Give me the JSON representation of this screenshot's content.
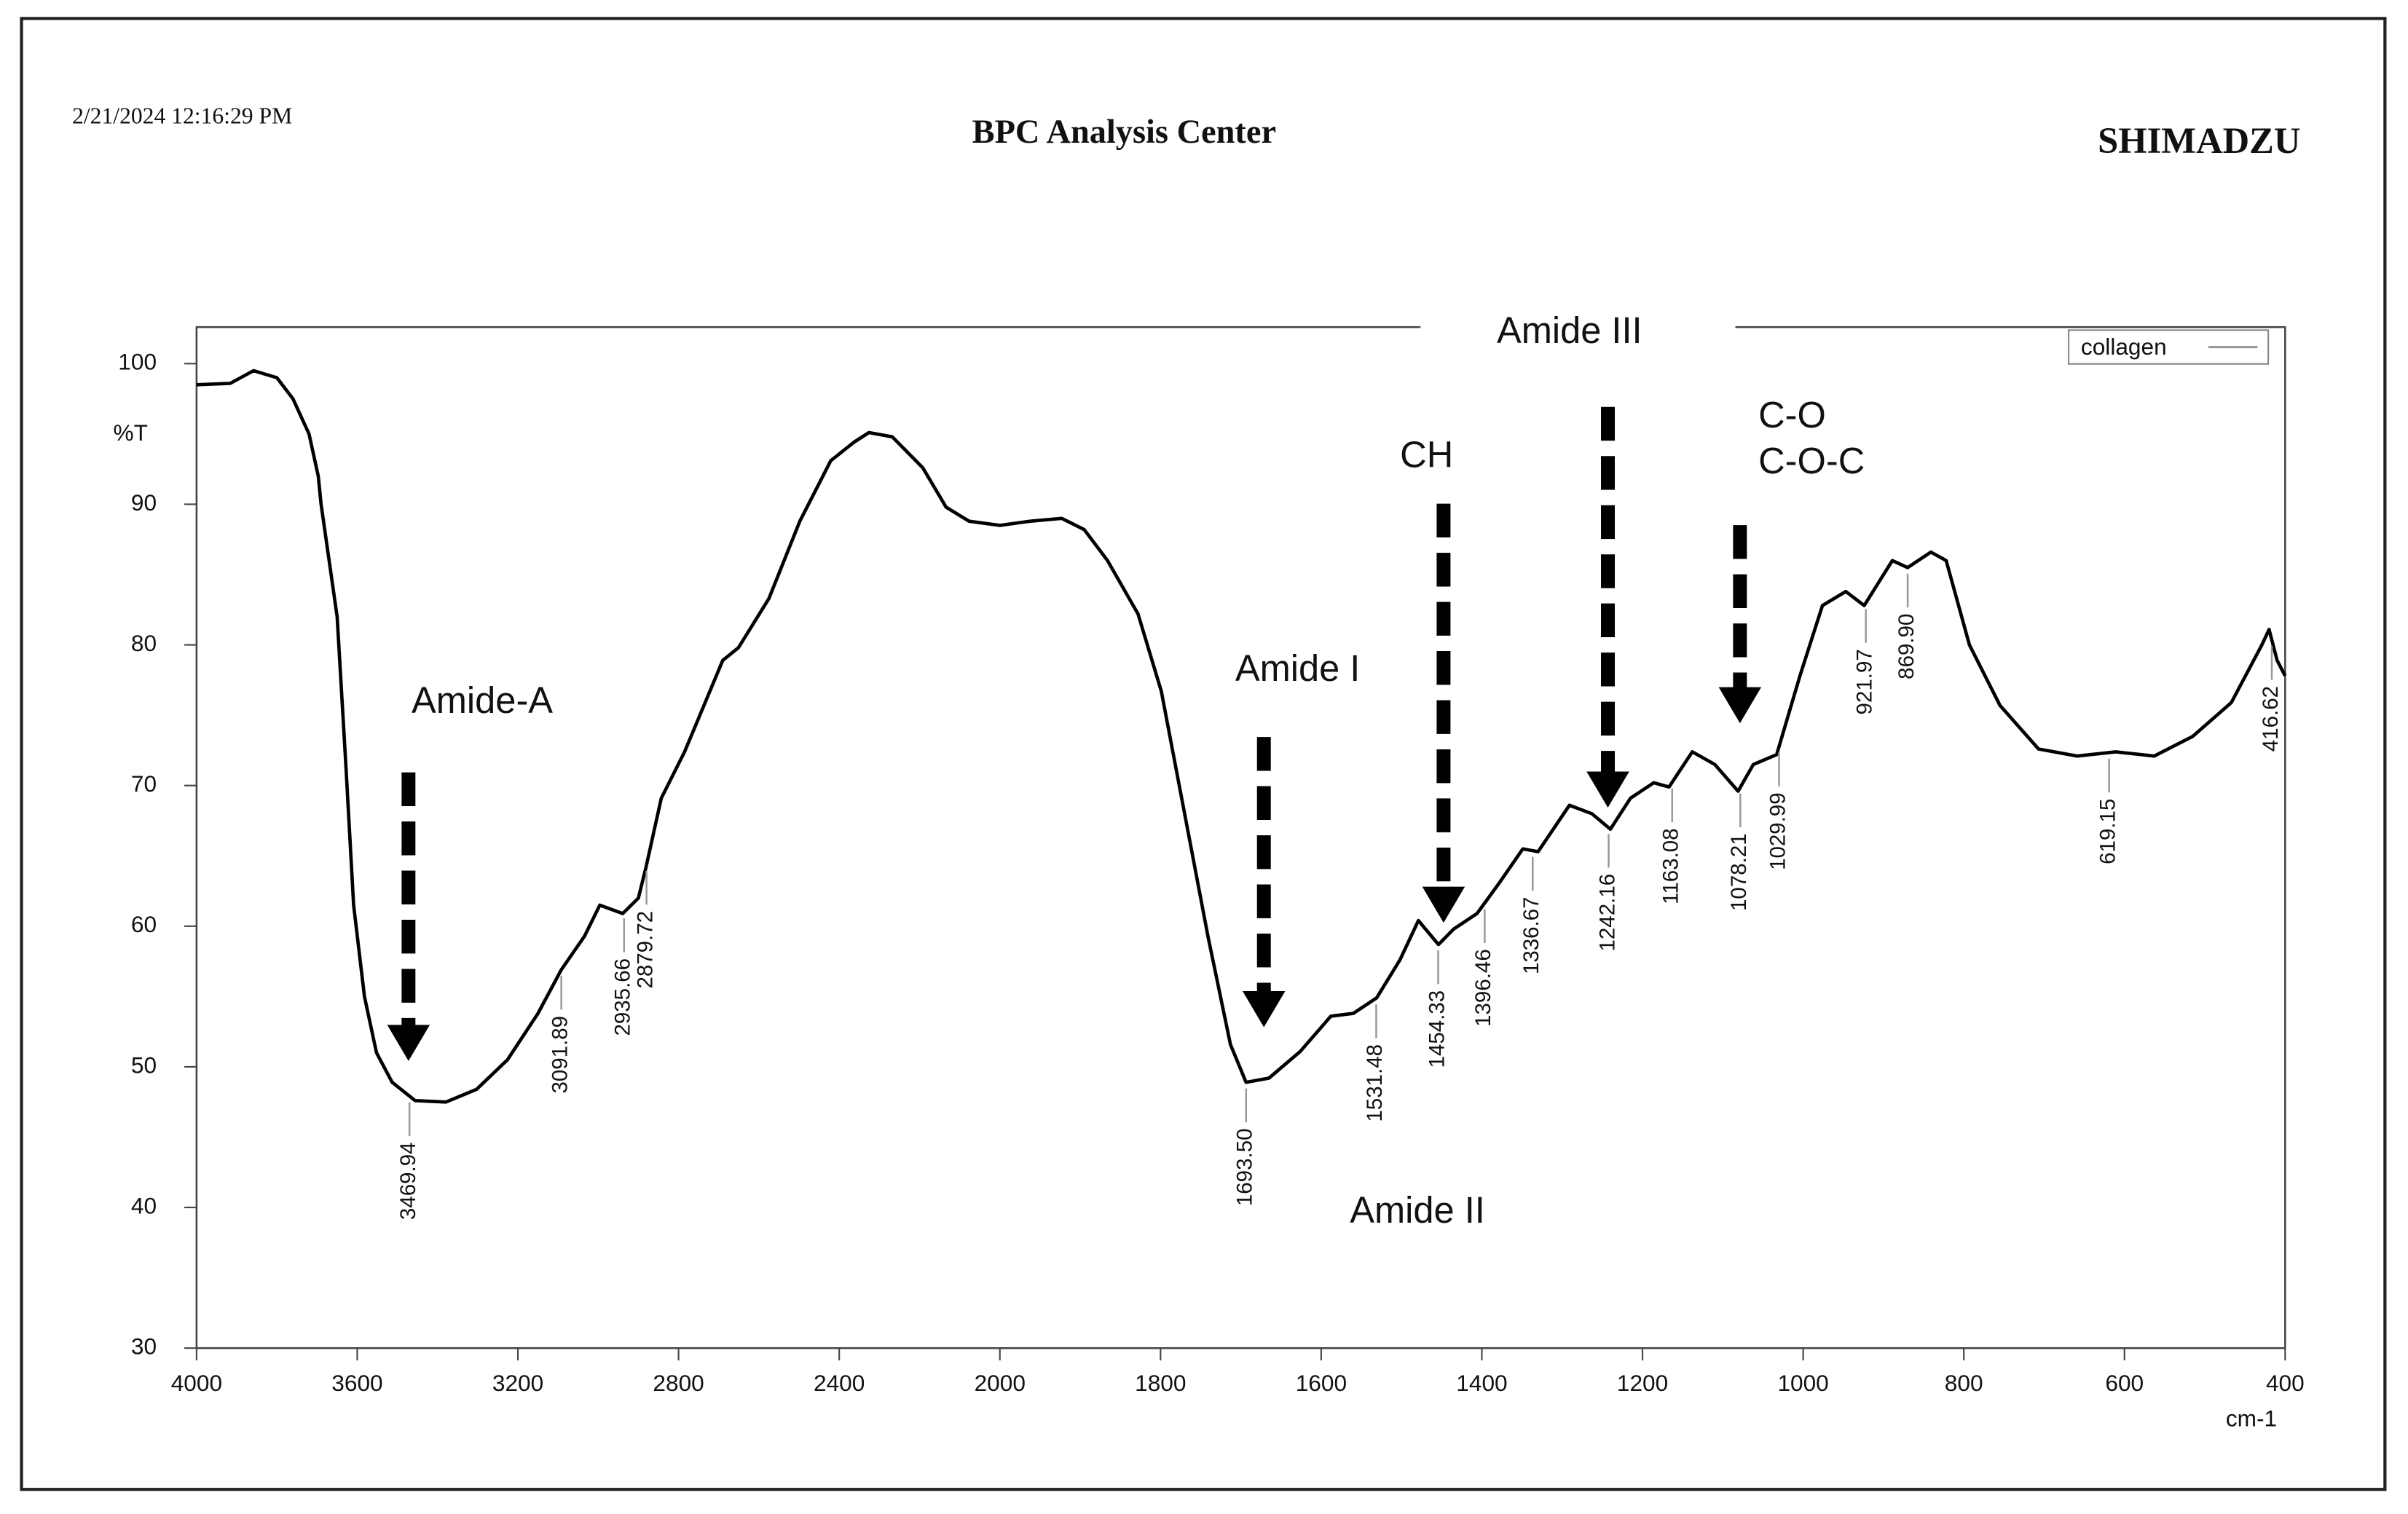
{
  "chart_data": {
    "type": "line",
    "date": "2/21/2024 12:16:29 PM",
    "title": "BPC Analysis Center",
    "brand": "SHIMADZU",
    "ylabel": "%T",
    "xlabel": "cm-1",
    "xlim": [
      4000,
      400
    ],
    "xticks": [
      4000,
      3600,
      3200,
      2800,
      2400,
      2000,
      1800,
      1600,
      1400,
      1200,
      1000,
      800,
      600,
      400
    ],
    "ylim": [
      30,
      102.6
    ],
    "yticks": [
      30,
      40,
      50,
      60,
      70,
      80,
      90,
      100
    ],
    "legend": "upper right",
    "x": [
      4000,
      3916,
      3858,
      3800,
      3760,
      3720,
      3697,
      3690,
      3650,
      3628,
      3609,
      3582,
      3552,
      3513,
      3456,
      3379,
      3303,
      3226,
      3150,
      3092,
      3034,
      2996,
      2939,
      2900,
      2881,
      2843,
      2785,
      2690,
      2651,
      2575,
      2498,
      2421,
      2364,
      2326,
      2268,
      2192,
      2134,
      2077,
      2000,
      1962,
      1923,
      1895,
      1866,
      1828,
      1799,
      1770,
      1741,
      1713,
      1693.5,
      1665,
      1626,
      1588,
      1560,
      1531,
      1502,
      1479,
      1454,
      1435,
      1406,
      1378,
      1349,
      1330,
      1291,
      1263,
      1240,
      1215,
      1186,
      1167,
      1138,
      1110,
      1081,
      1062,
      1033,
      1004,
      976,
      947,
      924,
      889,
      870,
      841,
      822,
      793,
      755,
      707,
      659,
      611,
      563,
      515,
      467,
      429,
      420,
      410,
      400
    ],
    "series": [
      {
        "name": "collagen",
        "color": "#000000",
        "values": [
          98.5,
          98.6,
          99.5,
          99,
          97.5,
          95,
          92,
          90,
          82,
          71.3,
          61.5,
          55,
          51,
          48.9,
          47.6,
          47.5,
          48.4,
          50.5,
          53.8,
          56.9,
          59.3,
          61.5,
          60.9,
          62,
          64.2,
          69.1,
          72.4,
          78.9,
          79.8,
          83.3,
          88.8,
          93.1,
          94.4,
          95.1,
          94.8,
          92.6,
          89.8,
          88.8,
          88.5,
          88.8,
          89,
          88.2,
          86,
          82.2,
          76.7,
          68,
          59.3,
          51.6,
          48.9,
          49.2,
          51.1,
          53.6,
          53.8,
          54.9,
          57.6,
          60.4,
          58.7,
          59.8,
          60.9,
          63.1,
          65.5,
          65.3,
          68.6,
          68,
          66.9,
          69.1,
          70.2,
          69.9,
          72.4,
          71.5,
          69.6,
          71.5,
          72.2,
          77.8,
          82.8,
          83.8,
          82.8,
          86,
          85.5,
          86.6,
          86,
          80,
          75.7,
          72.6,
          72.1,
          72.4,
          72.1,
          73.5,
          75.9,
          80,
          81.1,
          78.9,
          77.8
        ]
      }
    ],
    "peaks": [
      3469.94,
      3091.89,
      2935.66,
      2879.72,
      {
        "value": 1693.5,
        "label": "1693.50"
      },
      1531.48,
      1454.33,
      1396.46,
      1336.67,
      1242.16,
      1163.08,
      1078.21,
      1029.99,
      921.97,
      {
        "value": 869.9,
        "label": "869.90"
      },
      619.15,
      416.62
    ],
    "annotations": [
      "Amide-A",
      "Amide I",
      "Amide II",
      "Amide III",
      "CH",
      "C-O",
      "C-O-C"
    ]
  }
}
